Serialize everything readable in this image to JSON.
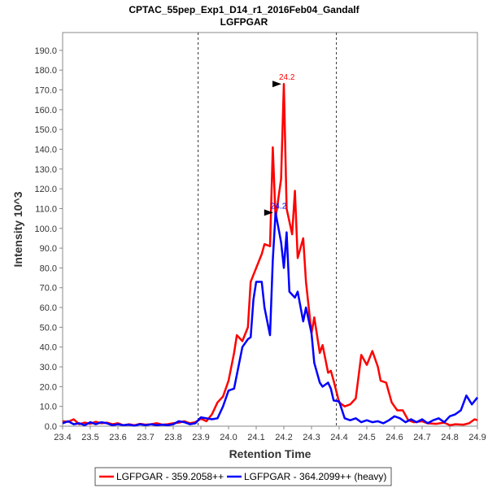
{
  "chart_data": {
    "type": "line",
    "title": "CPTAC_55pep_Exp1_D14_r1_2016Feb04_Gandalf",
    "subtitle": "LGFPGAR",
    "xlabel": "Retention Time",
    "ylabel": "Intensity 10^3",
    "xlim": [
      23.4,
      24.9
    ],
    "ylim": [
      0,
      199
    ],
    "x_ticks": [
      "23.4",
      "23.5",
      "23.6",
      "23.7",
      "23.8",
      "23.9",
      "24.0",
      "24.1",
      "24.2",
      "24.3",
      "24.4",
      "24.5",
      "24.6",
      "24.7",
      "24.8",
      "24.9"
    ],
    "y_ticks": [
      "0.0",
      "10.0",
      "20.0",
      "30.0",
      "40.0",
      "50.0",
      "60.0",
      "70.0",
      "80.0",
      "90.0",
      "100.0",
      "110.0",
      "120.0",
      "130.0",
      "140.0",
      "150.0",
      "160.0",
      "170.0",
      "180.0",
      "190.0"
    ],
    "grid": false,
    "boundaries": [
      23.89,
      24.39
    ],
    "legend_position": "bottom",
    "series": [
      {
        "name": "LGFPGAR - 359.2058++",
        "color": "#ff0000",
        "peak_label": "24.2",
        "peak": [
          24.2,
          173
        ],
        "points": [
          [
            23.4,
            2.5
          ],
          [
            23.42,
            2.2
          ],
          [
            23.44,
            3.5
          ],
          [
            23.46,
            1.0
          ],
          [
            23.48,
            1.8
          ],
          [
            23.5,
            1.2
          ],
          [
            23.52,
            2.2
          ],
          [
            23.54,
            1.5
          ],
          [
            23.56,
            1.8
          ],
          [
            23.58,
            1.0
          ],
          [
            23.6,
            1.5
          ],
          [
            23.62,
            0.5
          ],
          [
            23.64,
            1.0
          ],
          [
            23.66,
            0.5
          ],
          [
            23.68,
            1.2
          ],
          [
            23.7,
            0.8
          ],
          [
            23.72,
            1.0
          ],
          [
            23.74,
            1.5
          ],
          [
            23.76,
            0.8
          ],
          [
            23.78,
            1.0
          ],
          [
            23.8,
            1.5
          ],
          [
            23.82,
            1.8
          ],
          [
            23.84,
            2.5
          ],
          [
            23.86,
            1.5
          ],
          [
            23.88,
            2.0
          ],
          [
            23.9,
            3.8
          ],
          [
            23.92,
            2.5
          ],
          [
            23.94,
            6.0
          ],
          [
            23.96,
            12.0
          ],
          [
            23.98,
            15.0
          ],
          [
            24.0,
            23.0
          ],
          [
            24.02,
            37.0
          ],
          [
            24.03,
            46.0
          ],
          [
            24.05,
            43.0
          ],
          [
            24.07,
            50.0
          ],
          [
            24.08,
            73.0
          ],
          [
            24.1,
            80.0
          ],
          [
            24.12,
            87.0
          ],
          [
            24.13,
            92.0
          ],
          [
            24.15,
            91.0
          ],
          [
            24.16,
            141.0
          ],
          [
            24.17,
            105.0
          ],
          [
            24.19,
            125.0
          ],
          [
            24.2,
            173.0
          ],
          [
            24.21,
            110.0
          ],
          [
            24.23,
            97.0
          ],
          [
            24.24,
            119.0
          ],
          [
            24.25,
            85.0
          ],
          [
            24.27,
            95.0
          ],
          [
            24.28,
            73.0
          ],
          [
            24.3,
            47.0
          ],
          [
            24.31,
            55.0
          ],
          [
            24.33,
            37.0
          ],
          [
            24.34,
            41.0
          ],
          [
            24.36,
            27.0
          ],
          [
            24.37,
            28.0
          ],
          [
            24.38,
            23.0
          ],
          [
            24.4,
            12.0
          ],
          [
            24.42,
            10.0
          ],
          [
            24.44,
            11.0
          ],
          [
            24.46,
            14.0
          ],
          [
            24.48,
            36.0
          ],
          [
            24.5,
            31.0
          ],
          [
            24.52,
            38.0
          ],
          [
            24.54,
            30.0
          ],
          [
            24.55,
            23.0
          ],
          [
            24.57,
            22.0
          ],
          [
            24.59,
            12.0
          ],
          [
            24.61,
            8.0
          ],
          [
            24.63,
            8.0
          ],
          [
            24.65,
            3.0
          ],
          [
            24.67,
            2.0
          ],
          [
            24.7,
            2.5
          ],
          [
            24.72,
            1.5
          ],
          [
            24.75,
            1.2
          ],
          [
            24.78,
            1.8
          ],
          [
            24.8,
            0.5
          ],
          [
            24.82,
            1.0
          ],
          [
            24.85,
            0.8
          ],
          [
            24.87,
            1.5
          ],
          [
            24.89,
            3.5
          ],
          [
            24.9,
            3.0
          ]
        ]
      },
      {
        "name": "LGFPGAR - 364.2099++ (heavy)",
        "color": "#0000ff",
        "peak_label": "24.2",
        "peak": [
          24.17,
          108
        ],
        "points": [
          [
            23.4,
            1.5
          ],
          [
            23.42,
            2.5
          ],
          [
            23.44,
            1.0
          ],
          [
            23.46,
            1.5
          ],
          [
            23.48,
            0.5
          ],
          [
            23.5,
            2.0
          ],
          [
            23.52,
            1.0
          ],
          [
            23.54,
            2.0
          ],
          [
            23.56,
            1.5
          ],
          [
            23.58,
            0.5
          ],
          [
            23.6,
            1.0
          ],
          [
            23.62,
            0.5
          ],
          [
            23.64,
            0.8
          ],
          [
            23.66,
            0.3
          ],
          [
            23.68,
            1.0
          ],
          [
            23.7,
            0.5
          ],
          [
            23.72,
            1.0
          ],
          [
            23.74,
            0.5
          ],
          [
            23.76,
            0.8
          ],
          [
            23.78,
            0.5
          ],
          [
            23.8,
            1.0
          ],
          [
            23.82,
            2.5
          ],
          [
            23.84,
            2.0
          ],
          [
            23.86,
            1.0
          ],
          [
            23.88,
            1.5
          ],
          [
            23.9,
            4.5
          ],
          [
            23.92,
            4.0
          ],
          [
            23.94,
            3.5
          ],
          [
            23.96,
            4.0
          ],
          [
            23.98,
            10.0
          ],
          [
            24.0,
            18.0
          ],
          [
            24.02,
            19.0
          ],
          [
            24.03,
            26.0
          ],
          [
            24.05,
            40.0
          ],
          [
            24.07,
            44.0
          ],
          [
            24.08,
            45.0
          ],
          [
            24.09,
            64.0
          ],
          [
            24.1,
            73.0
          ],
          [
            24.12,
            73.0
          ],
          [
            24.13,
            60.0
          ],
          [
            24.15,
            46.0
          ],
          [
            24.16,
            84.0
          ],
          [
            24.17,
            108.0
          ],
          [
            24.19,
            93.0
          ],
          [
            24.2,
            80.0
          ],
          [
            24.21,
            98.0
          ],
          [
            24.22,
            68.0
          ],
          [
            24.24,
            65.0
          ],
          [
            24.25,
            68.0
          ],
          [
            24.27,
            53.0
          ],
          [
            24.28,
            60.0
          ],
          [
            24.3,
            47.0
          ],
          [
            24.31,
            32.0
          ],
          [
            24.33,
            22.0
          ],
          [
            24.34,
            20.0
          ],
          [
            24.36,
            22.0
          ],
          [
            24.37,
            19.0
          ],
          [
            24.38,
            13.0
          ],
          [
            24.4,
            12.5
          ],
          [
            24.42,
            4.0
          ],
          [
            24.44,
            3.0
          ],
          [
            24.46,
            4.0
          ],
          [
            24.48,
            2.0
          ],
          [
            24.5,
            3.0
          ],
          [
            24.52,
            2.0
          ],
          [
            24.54,
            2.5
          ],
          [
            24.56,
            1.5
          ],
          [
            24.58,
            3.0
          ],
          [
            24.6,
            5.0
          ],
          [
            24.62,
            4.0
          ],
          [
            24.64,
            2.0
          ],
          [
            24.66,
            3.5
          ],
          [
            24.68,
            2.0
          ],
          [
            24.7,
            3.5
          ],
          [
            24.72,
            1.5
          ],
          [
            24.74,
            3.0
          ],
          [
            24.76,
            4.0
          ],
          [
            24.78,
            2.0
          ],
          [
            24.8,
            5.0
          ],
          [
            24.82,
            6.0
          ],
          [
            24.84,
            8.0
          ],
          [
            24.86,
            15.5
          ],
          [
            24.88,
            11.0
          ],
          [
            24.9,
            14.5
          ]
        ]
      }
    ]
  }
}
